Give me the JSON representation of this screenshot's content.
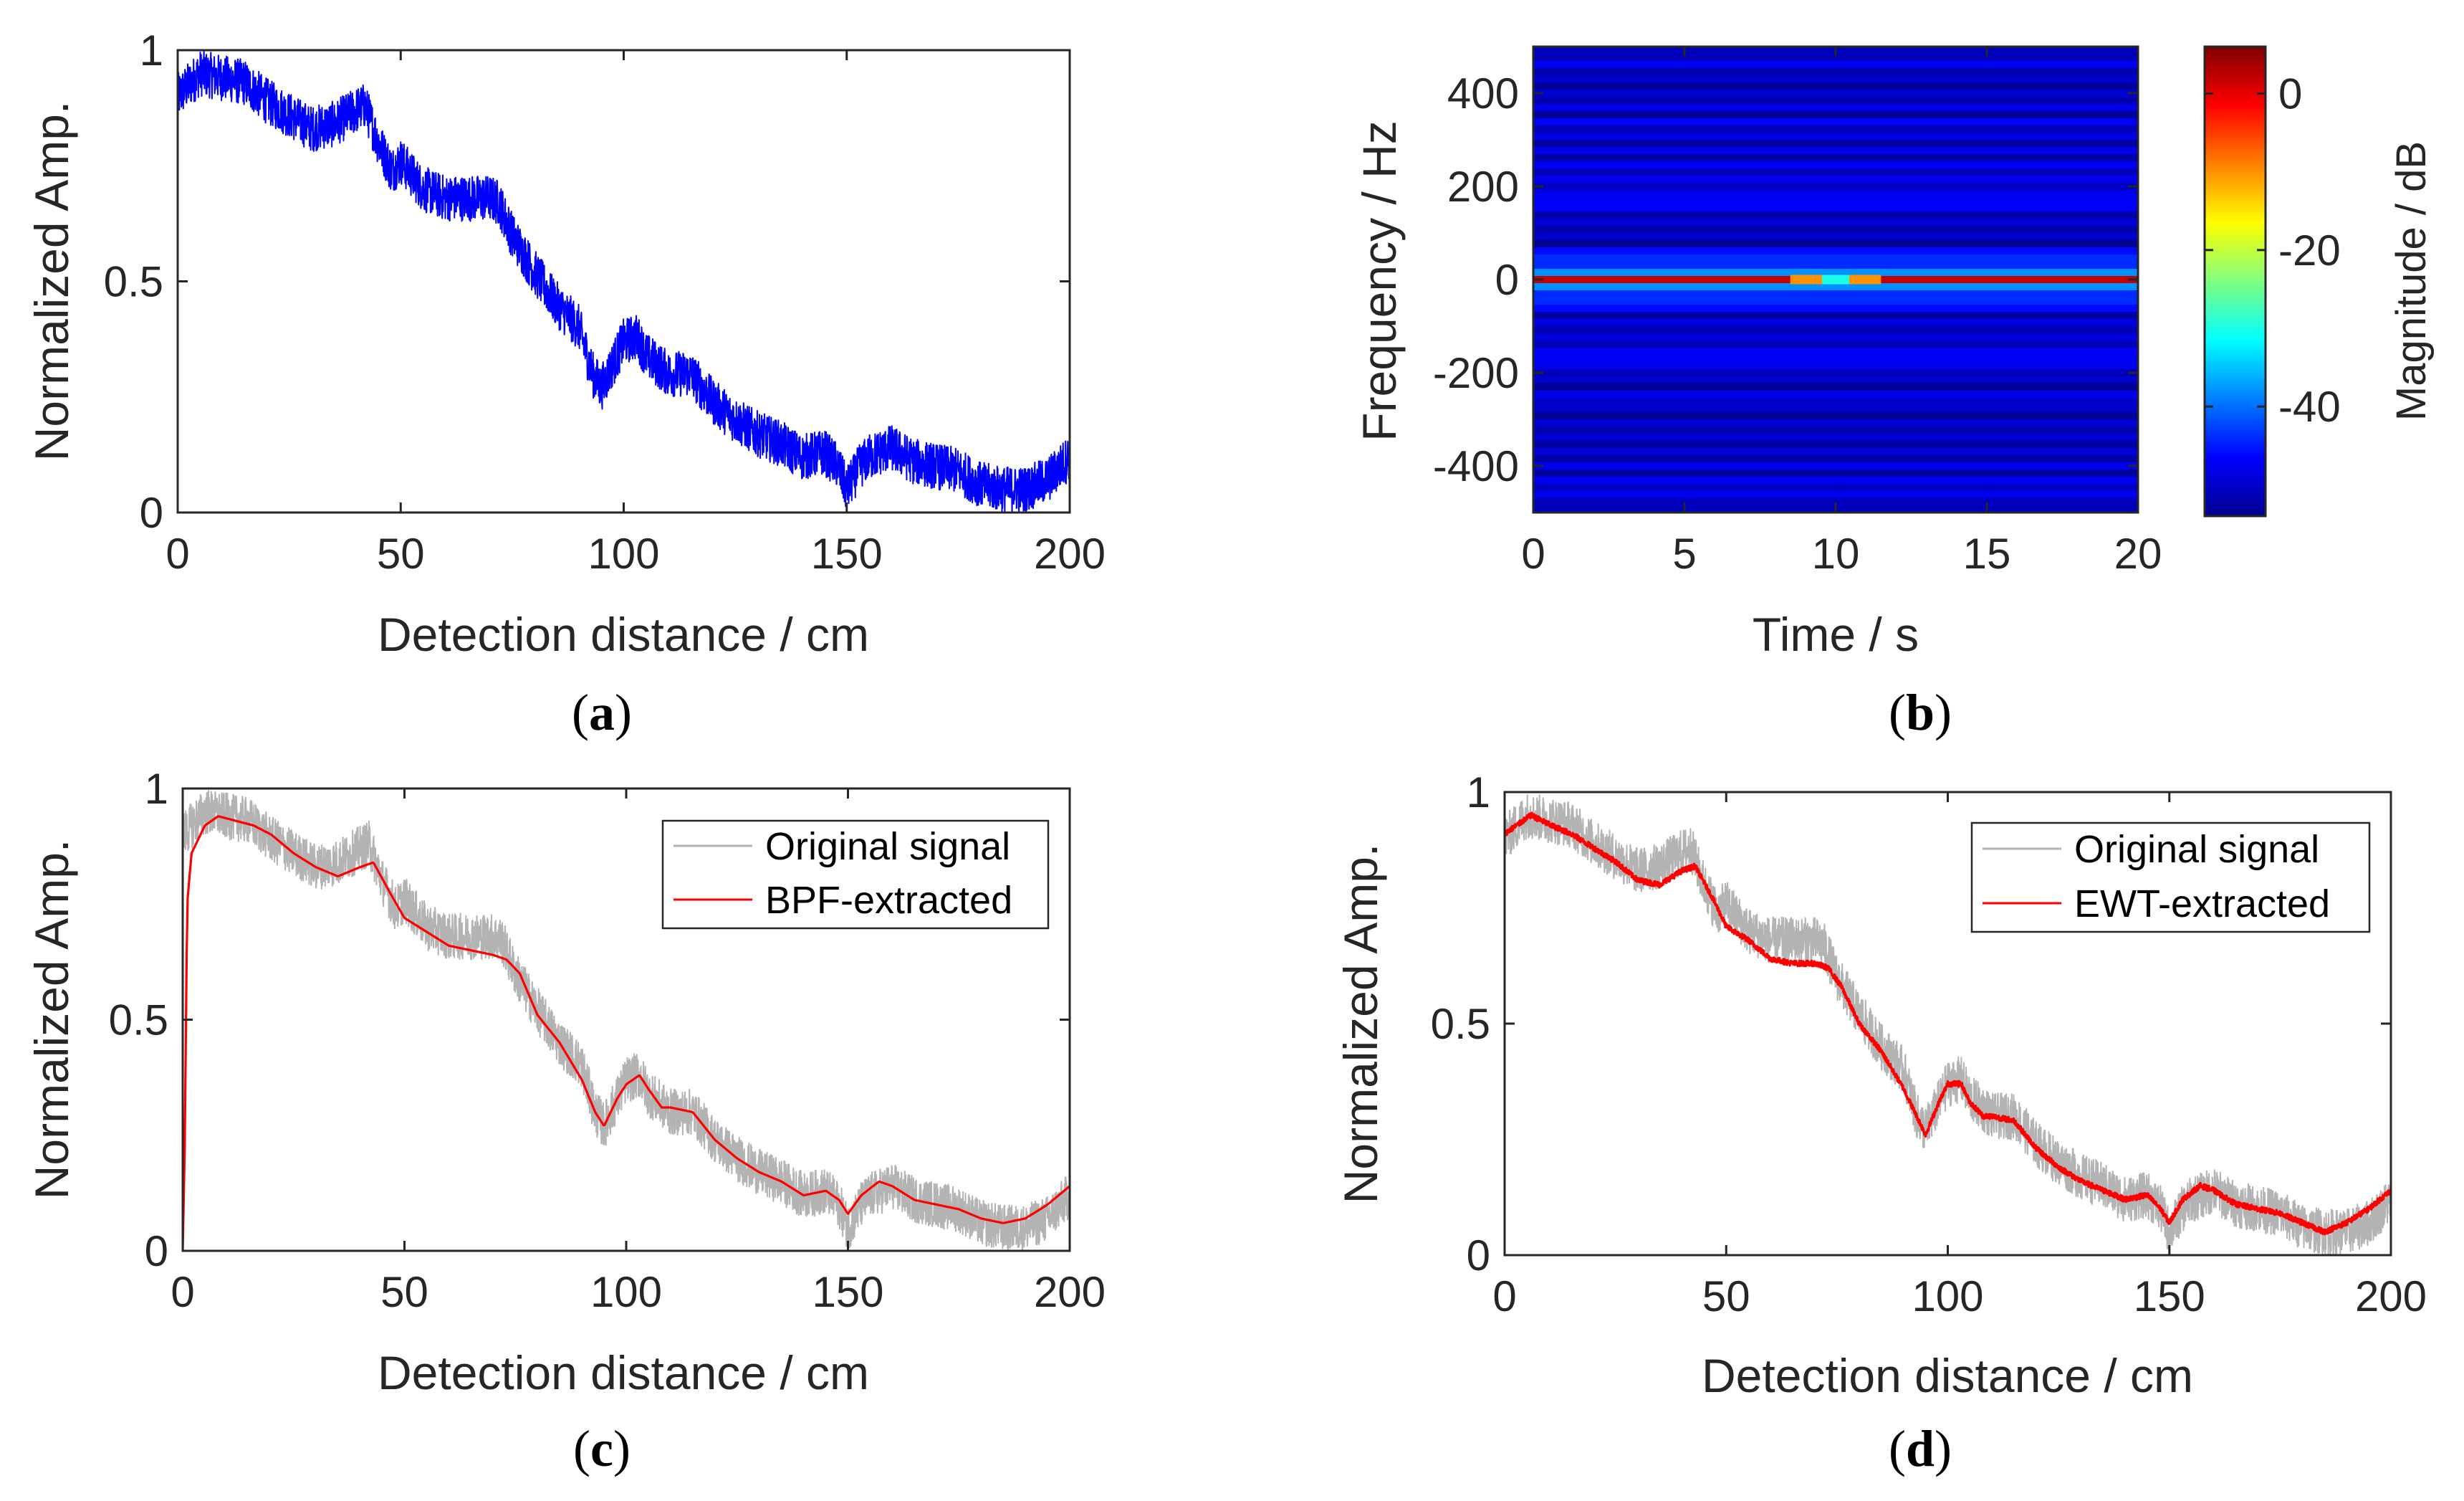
{
  "chart_data": [
    {
      "id": "a",
      "type": "line",
      "caption_letter": "a",
      "xlabel": "Detection distance / cm",
      "ylabel": "Normalized Amp.",
      "xlim": [
        0,
        200
      ],
      "ylim": [
        0,
        1
      ],
      "xticks": [
        "0",
        "50",
        "100",
        "150",
        "200"
      ],
      "yticks": [
        "0",
        "0.5",
        "1"
      ],
      "series": [
        {
          "name": "signal",
          "color": "#0000ff",
          "noise": 0.05,
          "x": [
            0,
            5,
            10,
            15,
            20,
            25,
            30,
            35,
            40,
            42,
            45,
            48,
            50,
            55,
            60,
            65,
            70,
            72,
            75,
            80,
            85,
            90,
            93,
            95,
            98,
            100,
            103,
            105,
            110,
            115,
            120,
            125,
            130,
            135,
            140,
            145,
            148,
            150,
            153,
            155,
            160,
            165,
            170,
            175,
            180,
            185,
            190,
            195,
            200
          ],
          "values": [
            0.9,
            0.95,
            0.94,
            0.93,
            0.89,
            0.86,
            0.83,
            0.84,
            0.87,
            0.88,
            0.8,
            0.74,
            0.76,
            0.7,
            0.68,
            0.68,
            0.68,
            0.67,
            0.6,
            0.52,
            0.45,
            0.4,
            0.3,
            0.27,
            0.33,
            0.37,
            0.38,
            0.34,
            0.3,
            0.3,
            0.24,
            0.2,
            0.17,
            0.15,
            0.12,
            0.13,
            0.1,
            0.05,
            0.1,
            0.12,
            0.14,
            0.11,
            0.1,
            0.09,
            0.06,
            0.05,
            0.05,
            0.07,
            0.12
          ]
        }
      ]
    },
    {
      "id": "b",
      "type": "heatmap",
      "caption_letter": "b",
      "xlabel": "Time / s",
      "ylabel": "Frequency / Hz",
      "xlim": [
        0,
        20
      ],
      "ylim": [
        -500,
        500
      ],
      "xticks": [
        "0",
        "5",
        "10",
        "15",
        "20"
      ],
      "yticks": [
        "-400",
        "-200",
        "0",
        "200",
        "400"
      ],
      "colorbar_label": "Magnitude / dB",
      "colorbar_range": [
        -54,
        6
      ],
      "colorbar_ticks": [
        "0",
        "-20",
        "-40"
      ],
      "colormap": [
        "#00008f",
        "#0000ff",
        "#0080ff",
        "#00ffff",
        "#80ff80",
        "#ffff00",
        "#ff8000",
        "#ff0000",
        "#800000"
      ],
      "band_levels_db": [
        {
          "freq_hz": 0,
          "db": 2
        },
        {
          "freq_hz": 20,
          "db": -38
        },
        {
          "freq_hz": -20,
          "db": -38
        },
        {
          "freq_hz": 40,
          "db": -44
        },
        {
          "freq_hz": -40,
          "db": -44
        },
        {
          "freq_hz": 60,
          "db": -46
        },
        {
          "freq_hz": -60,
          "db": -46
        },
        {
          "freq_hz": 160,
          "db": -47
        },
        {
          "freq_hz": -160,
          "db": -47
        }
      ],
      "dip_time_s": [
        8.5,
        11.5
      ],
      "background_db": -52
    },
    {
      "id": "c",
      "type": "line",
      "caption_letter": "c",
      "xlabel": "Detection distance / cm",
      "ylabel": "Normalized Amp.",
      "xlim": [
        0,
        200
      ],
      "ylim": [
        0,
        1
      ],
      "xticks": [
        "0",
        "50",
        "100",
        "150",
        "200"
      ],
      "yticks": [
        "0",
        "0.5",
        "1"
      ],
      "legend": {
        "position": "top-right",
        "entries": [
          "Original signal",
          "BPF-extracted"
        ]
      },
      "series": [
        {
          "name": "Original signal",
          "color": "#b3b3b3",
          "noise": 0.05,
          "x": [
            0,
            5,
            10,
            15,
            20,
            25,
            30,
            35,
            40,
            42,
            45,
            48,
            50,
            55,
            60,
            65,
            70,
            72,
            75,
            80,
            85,
            90,
            93,
            95,
            98,
            100,
            103,
            105,
            110,
            115,
            120,
            125,
            130,
            135,
            140,
            145,
            148,
            150,
            153,
            155,
            160,
            165,
            170,
            175,
            180,
            185,
            190,
            195,
            200
          ],
          "values": [
            0.9,
            0.95,
            0.94,
            0.93,
            0.89,
            0.86,
            0.83,
            0.84,
            0.87,
            0.88,
            0.8,
            0.74,
            0.76,
            0.7,
            0.68,
            0.68,
            0.68,
            0.67,
            0.6,
            0.52,
            0.45,
            0.4,
            0.3,
            0.27,
            0.33,
            0.37,
            0.38,
            0.34,
            0.3,
            0.3,
            0.24,
            0.2,
            0.17,
            0.15,
            0.12,
            0.13,
            0.1,
            0.05,
            0.1,
            0.12,
            0.14,
            0.11,
            0.1,
            0.09,
            0.06,
            0.05,
            0.05,
            0.07,
            0.12
          ]
        },
        {
          "name": "BPF-extracted",
          "color": "#ff0000",
          "noise": 0,
          "x": [
            0,
            0.5,
            1,
            2,
            3,
            5,
            8,
            12,
            16,
            20,
            25,
            30,
            35,
            40,
            43,
            47,
            50,
            55,
            60,
            65,
            70,
            73,
            76,
            80,
            85,
            90,
            93,
            95,
            98,
            100,
            103,
            105,
            108,
            110,
            115,
            120,
            125,
            130,
            135,
            140,
            145,
            148,
            150,
            153,
            157,
            160,
            165,
            170,
            175,
            180,
            185,
            190,
            195,
            200
          ],
          "values": [
            0.0,
            0.25,
            0.75,
            0.86,
            0.88,
            0.92,
            0.94,
            0.93,
            0.92,
            0.9,
            0.86,
            0.83,
            0.81,
            0.83,
            0.84,
            0.77,
            0.72,
            0.69,
            0.66,
            0.65,
            0.64,
            0.63,
            0.6,
            0.51,
            0.45,
            0.37,
            0.3,
            0.27,
            0.33,
            0.36,
            0.38,
            0.35,
            0.31,
            0.31,
            0.3,
            0.24,
            0.2,
            0.17,
            0.15,
            0.12,
            0.13,
            0.11,
            0.08,
            0.12,
            0.15,
            0.14,
            0.11,
            0.1,
            0.09,
            0.07,
            0.06,
            0.07,
            0.1,
            0.14
          ]
        }
      ]
    },
    {
      "id": "d",
      "type": "line",
      "caption_letter": "d",
      "xlabel": "Detection distance / cm",
      "ylabel": "Normalized Amp.",
      "xlim": [
        0,
        200
      ],
      "ylim": [
        0,
        1
      ],
      "xticks": [
        "0",
        "50",
        "100",
        "150",
        "200"
      ],
      "yticks": [
        "0",
        "0.5",
        "1"
      ],
      "legend": {
        "position": "top-right",
        "entries": [
          "Original signal",
          "EWT-extracted"
        ]
      },
      "series": [
        {
          "name": "Original signal",
          "color": "#b3b3b3",
          "noise": 0.05,
          "x": [
            0,
            5,
            10,
            15,
            20,
            25,
            30,
            35,
            40,
            42,
            45,
            48,
            50,
            55,
            60,
            65,
            70,
            72,
            75,
            80,
            85,
            90,
            93,
            95,
            98,
            100,
            103,
            105,
            110,
            115,
            120,
            125,
            130,
            135,
            140,
            145,
            148,
            150,
            153,
            155,
            160,
            165,
            170,
            175,
            180,
            185,
            190,
            195,
            200
          ],
          "values": [
            0.9,
            0.95,
            0.94,
            0.93,
            0.89,
            0.86,
            0.83,
            0.84,
            0.87,
            0.88,
            0.8,
            0.74,
            0.76,
            0.7,
            0.68,
            0.68,
            0.68,
            0.67,
            0.6,
            0.52,
            0.45,
            0.4,
            0.3,
            0.27,
            0.33,
            0.37,
            0.38,
            0.34,
            0.3,
            0.3,
            0.24,
            0.2,
            0.17,
            0.15,
            0.12,
            0.13,
            0.1,
            0.05,
            0.1,
            0.12,
            0.14,
            0.11,
            0.1,
            0.09,
            0.06,
            0.05,
            0.05,
            0.07,
            0.12
          ]
        },
        {
          "name": "EWT-extracted",
          "color": "#ff0000",
          "noise": 0.006,
          "x": [
            0,
            3,
            6,
            10,
            15,
            20,
            25,
            30,
            35,
            40,
            43,
            47,
            50,
            55,
            60,
            65,
            70,
            73,
            76,
            80,
            85,
            90,
            93,
            95,
            98,
            100,
            103,
            105,
            108,
            110,
            115,
            120,
            125,
            130,
            135,
            140,
            145,
            148,
            150,
            153,
            157,
            160,
            165,
            170,
            175,
            180,
            185,
            190,
            195,
            200
          ],
          "values": [
            0.91,
            0.93,
            0.95,
            0.93,
            0.91,
            0.88,
            0.85,
            0.81,
            0.8,
            0.83,
            0.84,
            0.77,
            0.71,
            0.68,
            0.64,
            0.63,
            0.63,
            0.62,
            0.58,
            0.5,
            0.44,
            0.36,
            0.3,
            0.26,
            0.33,
            0.37,
            0.37,
            0.33,
            0.3,
            0.3,
            0.29,
            0.23,
            0.19,
            0.16,
            0.14,
            0.12,
            0.13,
            0.1,
            0.07,
            0.12,
            0.15,
            0.14,
            0.11,
            0.1,
            0.09,
            0.07,
            0.05,
            0.07,
            0.1,
            0.14
          ]
        }
      ]
    }
  ]
}
